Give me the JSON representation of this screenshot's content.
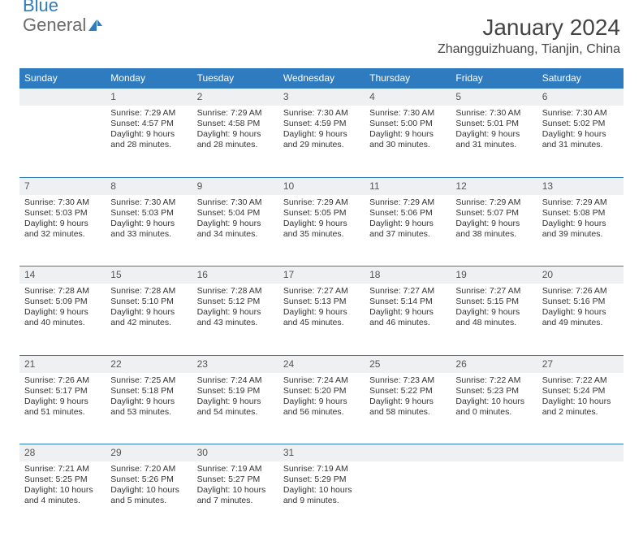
{
  "brand": {
    "part1": "General",
    "part2": "Blue"
  },
  "title": "January 2024",
  "location": "Zhangguizhuang, Tianjin, China",
  "colors": {
    "header_bg": "#2f7bbf",
    "header_text": "#ffffff",
    "daynum_bg": "#eef0f1",
    "row_divider": "#2f7bbf",
    "body_text": "#333333",
    "title_text": "#444444"
  },
  "days_of_week": [
    "Sunday",
    "Monday",
    "Tuesday",
    "Wednesday",
    "Thursday",
    "Friday",
    "Saturday"
  ],
  "weeks": [
    {
      "nums": [
        "",
        "1",
        "2",
        "3",
        "4",
        "5",
        "6"
      ],
      "cells": [
        [],
        [
          "Sunrise: 7:29 AM",
          "Sunset: 4:57 PM",
          "Daylight: 9 hours",
          "and 28 minutes."
        ],
        [
          "Sunrise: 7:29 AM",
          "Sunset: 4:58 PM",
          "Daylight: 9 hours",
          "and 28 minutes."
        ],
        [
          "Sunrise: 7:30 AM",
          "Sunset: 4:59 PM",
          "Daylight: 9 hours",
          "and 29 minutes."
        ],
        [
          "Sunrise: 7:30 AM",
          "Sunset: 5:00 PM",
          "Daylight: 9 hours",
          "and 30 minutes."
        ],
        [
          "Sunrise: 7:30 AM",
          "Sunset: 5:01 PM",
          "Daylight: 9 hours",
          "and 31 minutes."
        ],
        [
          "Sunrise: 7:30 AM",
          "Sunset: 5:02 PM",
          "Daylight: 9 hours",
          "and 31 minutes."
        ]
      ]
    },
    {
      "nums": [
        "7",
        "8",
        "9",
        "10",
        "11",
        "12",
        "13"
      ],
      "cells": [
        [
          "Sunrise: 7:30 AM",
          "Sunset: 5:03 PM",
          "Daylight: 9 hours",
          "and 32 minutes."
        ],
        [
          "Sunrise: 7:30 AM",
          "Sunset: 5:03 PM",
          "Daylight: 9 hours",
          "and 33 minutes."
        ],
        [
          "Sunrise: 7:30 AM",
          "Sunset: 5:04 PM",
          "Daylight: 9 hours",
          "and 34 minutes."
        ],
        [
          "Sunrise: 7:29 AM",
          "Sunset: 5:05 PM",
          "Daylight: 9 hours",
          "and 35 minutes."
        ],
        [
          "Sunrise: 7:29 AM",
          "Sunset: 5:06 PM",
          "Daylight: 9 hours",
          "and 37 minutes."
        ],
        [
          "Sunrise: 7:29 AM",
          "Sunset: 5:07 PM",
          "Daylight: 9 hours",
          "and 38 minutes."
        ],
        [
          "Sunrise: 7:29 AM",
          "Sunset: 5:08 PM",
          "Daylight: 9 hours",
          "and 39 minutes."
        ]
      ]
    },
    {
      "nums": [
        "14",
        "15",
        "16",
        "17",
        "18",
        "19",
        "20"
      ],
      "cells": [
        [
          "Sunrise: 7:28 AM",
          "Sunset: 5:09 PM",
          "Daylight: 9 hours",
          "and 40 minutes."
        ],
        [
          "Sunrise: 7:28 AM",
          "Sunset: 5:10 PM",
          "Daylight: 9 hours",
          "and 42 minutes."
        ],
        [
          "Sunrise: 7:28 AM",
          "Sunset: 5:12 PM",
          "Daylight: 9 hours",
          "and 43 minutes."
        ],
        [
          "Sunrise: 7:27 AM",
          "Sunset: 5:13 PM",
          "Daylight: 9 hours",
          "and 45 minutes."
        ],
        [
          "Sunrise: 7:27 AM",
          "Sunset: 5:14 PM",
          "Daylight: 9 hours",
          "and 46 minutes."
        ],
        [
          "Sunrise: 7:27 AM",
          "Sunset: 5:15 PM",
          "Daylight: 9 hours",
          "and 48 minutes."
        ],
        [
          "Sunrise: 7:26 AM",
          "Sunset: 5:16 PM",
          "Daylight: 9 hours",
          "and 49 minutes."
        ]
      ]
    },
    {
      "nums": [
        "21",
        "22",
        "23",
        "24",
        "25",
        "26",
        "27"
      ],
      "cells": [
        [
          "Sunrise: 7:26 AM",
          "Sunset: 5:17 PM",
          "Daylight: 9 hours",
          "and 51 minutes."
        ],
        [
          "Sunrise: 7:25 AM",
          "Sunset: 5:18 PM",
          "Daylight: 9 hours",
          "and 53 minutes."
        ],
        [
          "Sunrise: 7:24 AM",
          "Sunset: 5:19 PM",
          "Daylight: 9 hours",
          "and 54 minutes."
        ],
        [
          "Sunrise: 7:24 AM",
          "Sunset: 5:20 PM",
          "Daylight: 9 hours",
          "and 56 minutes."
        ],
        [
          "Sunrise: 7:23 AM",
          "Sunset: 5:22 PM",
          "Daylight: 9 hours",
          "and 58 minutes."
        ],
        [
          "Sunrise: 7:22 AM",
          "Sunset: 5:23 PM",
          "Daylight: 10 hours",
          "and 0 minutes."
        ],
        [
          "Sunrise: 7:22 AM",
          "Sunset: 5:24 PM",
          "Daylight: 10 hours",
          "and 2 minutes."
        ]
      ]
    },
    {
      "nums": [
        "28",
        "29",
        "30",
        "31",
        "",
        "",
        ""
      ],
      "cells": [
        [
          "Sunrise: 7:21 AM",
          "Sunset: 5:25 PM",
          "Daylight: 10 hours",
          "and 4 minutes."
        ],
        [
          "Sunrise: 7:20 AM",
          "Sunset: 5:26 PM",
          "Daylight: 10 hours",
          "and 5 minutes."
        ],
        [
          "Sunrise: 7:19 AM",
          "Sunset: 5:27 PM",
          "Daylight: 10 hours",
          "and 7 minutes."
        ],
        [
          "Sunrise: 7:19 AM",
          "Sunset: 5:29 PM",
          "Daylight: 10 hours",
          "and 9 minutes."
        ],
        [],
        [],
        []
      ]
    }
  ]
}
